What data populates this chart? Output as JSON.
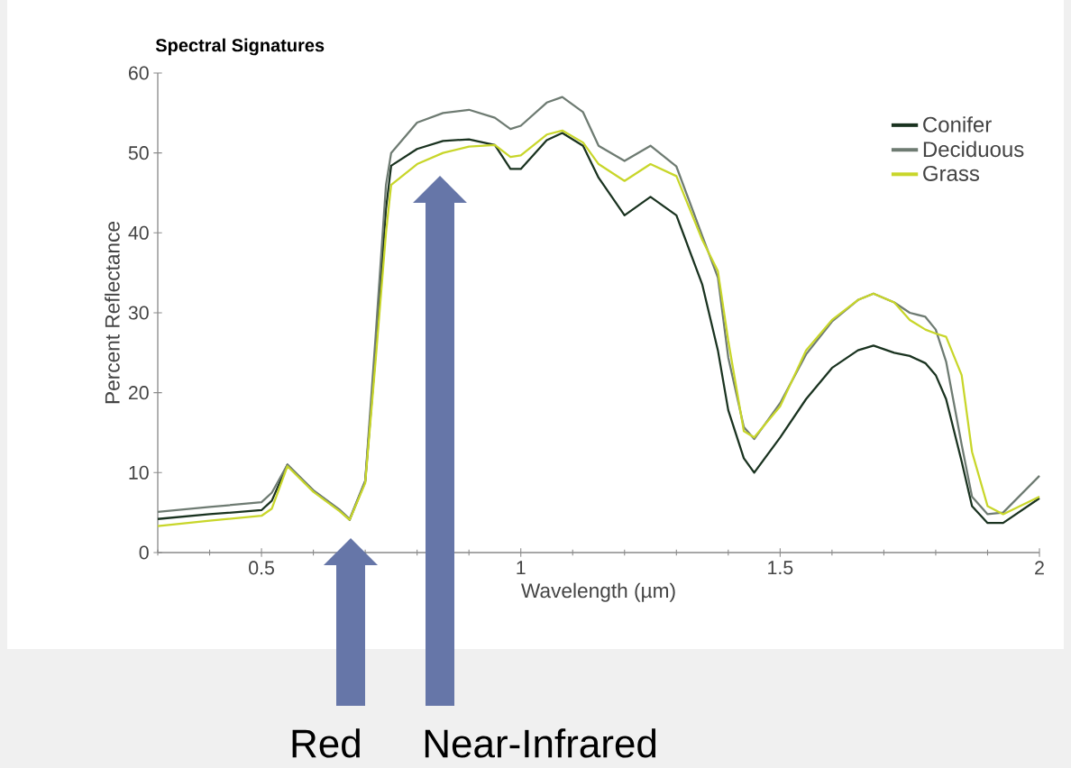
{
  "chart_data": {
    "type": "line",
    "title": "Spectral Signatures",
    "xlabel": "Wavelength (µm)",
    "ylabel": "Percent Reflectance",
    "x": [
      0.3,
      0.4,
      0.5,
      0.52,
      0.55,
      0.6,
      0.65,
      0.67,
      0.7,
      0.72,
      0.74,
      0.75,
      0.8,
      0.85,
      0.9,
      0.95,
      0.98,
      1.0,
      1.05,
      1.08,
      1.12,
      1.15,
      1.2,
      1.25,
      1.3,
      1.35,
      1.38,
      1.4,
      1.43,
      1.45,
      1.5,
      1.55,
      1.6,
      1.65,
      1.68,
      1.72,
      1.75,
      1.78,
      1.8,
      1.82,
      1.85,
      1.87,
      1.9,
      1.93,
      2.0
    ],
    "series": [
      {
        "name": "Conifer",
        "color": "#1a3320",
        "values": [
          4.2,
          4.8,
          5.3,
          6.5,
          11,
          7.7,
          5.3,
          4.1,
          8.9,
          25,
          43,
          48.4,
          50.5,
          51.5,
          51.7,
          51,
          48,
          48,
          51.6,
          52.5,
          50.9,
          46.9,
          42.2,
          44.5,
          42.2,
          33.5,
          25.3,
          17.8,
          11.8,
          10,
          14.4,
          19.2,
          23.1,
          25.3,
          25.9,
          25,
          24.6,
          23.7,
          22.2,
          19.2,
          11.4,
          5.8,
          3.7,
          3.7,
          6.8
        ]
      },
      {
        "name": "Deciduous",
        "color": "#6e7b72",
        "values": [
          5.1,
          5.7,
          6.3,
          7.5,
          11,
          7.8,
          5.4,
          4.2,
          9,
          27,
          46,
          50,
          53.8,
          55,
          55.4,
          54.4,
          53,
          53.4,
          56.3,
          57,
          55.1,
          50.9,
          49,
          50.9,
          48.3,
          39.6,
          34.4,
          24.4,
          15.7,
          14.2,
          18.7,
          24.8,
          28.9,
          31.6,
          32.4,
          31.3,
          30,
          29.5,
          27.9,
          23.9,
          13.5,
          7,
          4.8,
          5,
          9.6
        ]
      },
      {
        "name": "Grass",
        "color": "#c8d62a",
        "values": [
          3.3,
          4,
          4.6,
          5.5,
          10.8,
          7.6,
          5.2,
          4.1,
          8.7,
          24,
          40,
          46,
          48.6,
          50,
          50.8,
          51,
          49.5,
          49.7,
          52.3,
          52.8,
          51.3,
          48.6,
          46.5,
          48.6,
          47.1,
          39.1,
          35.2,
          26.5,
          15.2,
          14.4,
          18.3,
          25.3,
          29.1,
          31.6,
          32.4,
          31.3,
          29.1,
          27.9,
          27.4,
          27,
          22.2,
          12.6,
          5.8,
          4.8,
          7
        ]
      }
    ],
    "xlim": [
      0.3,
      2.0
    ],
    "ylim": [
      0,
      60
    ],
    "xticks": [
      {
        "value": 0.3,
        "label": null
      },
      {
        "value": 0.4,
        "label": null
      },
      0.5,
      {
        "value": 0.6,
        "label": null
      },
      {
        "value": 0.7,
        "label": null
      },
      {
        "value": 0.8,
        "label": null
      },
      {
        "value": 0.9,
        "label": null
      },
      1,
      {
        "value": 1.1,
        "label": null
      },
      {
        "value": 1.2,
        "label": null
      },
      {
        "value": 1.3,
        "label": null
      },
      {
        "value": 1.4,
        "label": null
      },
      1.5,
      {
        "value": 1.6,
        "label": null
      },
      {
        "value": 1.7,
        "label": null
      },
      {
        "value": 1.8,
        "label": null
      },
      {
        "value": 1.9,
        "label": null
      },
      2
    ],
    "yticks": [
      0,
      10,
      20,
      30,
      40,
      50,
      60
    ],
    "legend": "top right",
    "annotations": [
      "Red",
      "Near-Infrared"
    ]
  }
}
